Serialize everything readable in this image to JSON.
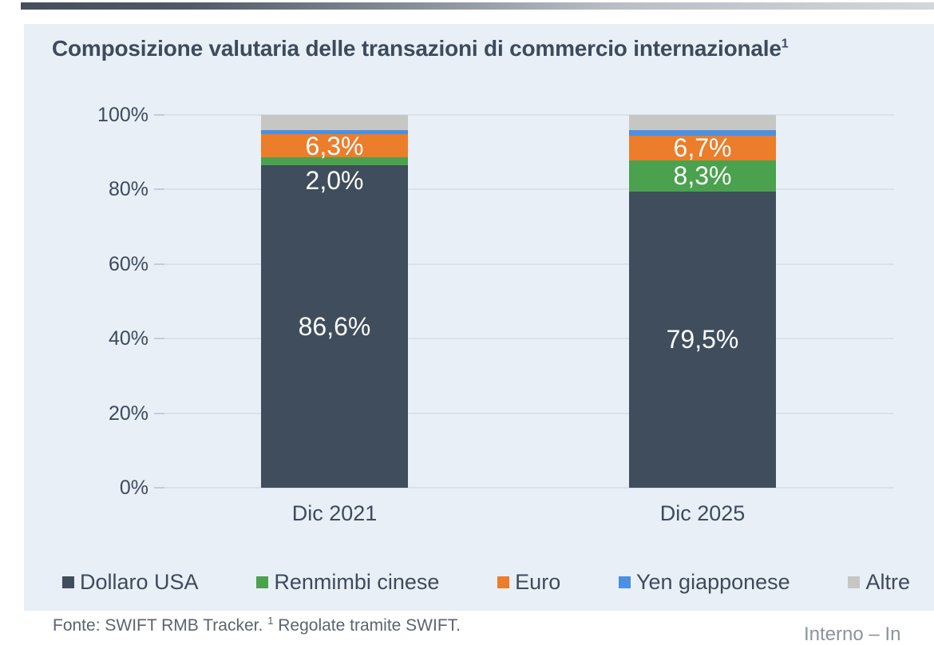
{
  "page": {
    "kind": "presentation-slide-chart"
  },
  "title": {
    "text": "Composizione valutaria delle transazioni di commercio internazionale",
    "superscript": "1"
  },
  "footer": {
    "source_text": "Fonte: SWIFT RMB Tracker.",
    "note_superscript": "1",
    "note_text": " Regolate tramite SWIFT."
  },
  "classification": {
    "text": "Interno – In"
  },
  "colors": {
    "card_bg": "#e9eff7",
    "grid": "#dae1eb",
    "tick": "#c3ccd8",
    "title_text": "#3d4b5c",
    "axis_text": "#3d4b5c",
    "bar_label_text": "#fbfcfb",
    "footer_text": "#5a6470",
    "classification_text": "#8d939c"
  },
  "chart_data": {
    "type": "bar",
    "stacked": true,
    "title": "Composizione valutaria delle transazioni di commercio internazionale",
    "categories": [
      "Dic 2021",
      "Dic 2025"
    ],
    "series": [
      {
        "name": "Dollaro USA",
        "color": "#3f4d5d",
        "values": [
          86.6,
          79.5
        ],
        "labels": [
          "86,6%",
          "79,5%"
        ]
      },
      {
        "name": "Renmimbi cinese",
        "color": "#4aa24e",
        "values": [
          2.0,
          8.3
        ],
        "labels": [
          "2,0%",
          "8,3%"
        ]
      },
      {
        "name": "Euro",
        "color": "#ec7d2b",
        "values": [
          6.3,
          6.7
        ],
        "labels": [
          "6,3%",
          "6,7%"
        ]
      },
      {
        "name": "Yen giapponese",
        "color": "#4b90e2",
        "values": [
          1.1,
          1.5
        ],
        "labels": [
          null,
          null
        ]
      },
      {
        "name": "Altre",
        "color": "#c6c6c4",
        "values": [
          4.0,
          4.0
        ],
        "labels": [
          null,
          null
        ]
      }
    ],
    "y_axis": {
      "min": 0,
      "max": 100,
      "tick_labels": [
        "0%",
        "20%",
        "40%",
        "60%",
        "80%",
        "100%"
      ],
      "tick_values": [
        0,
        20,
        40,
        60,
        80,
        100
      ],
      "grid": true
    },
    "legend_position": "bottom",
    "xlabel": "",
    "ylabel": ""
  }
}
